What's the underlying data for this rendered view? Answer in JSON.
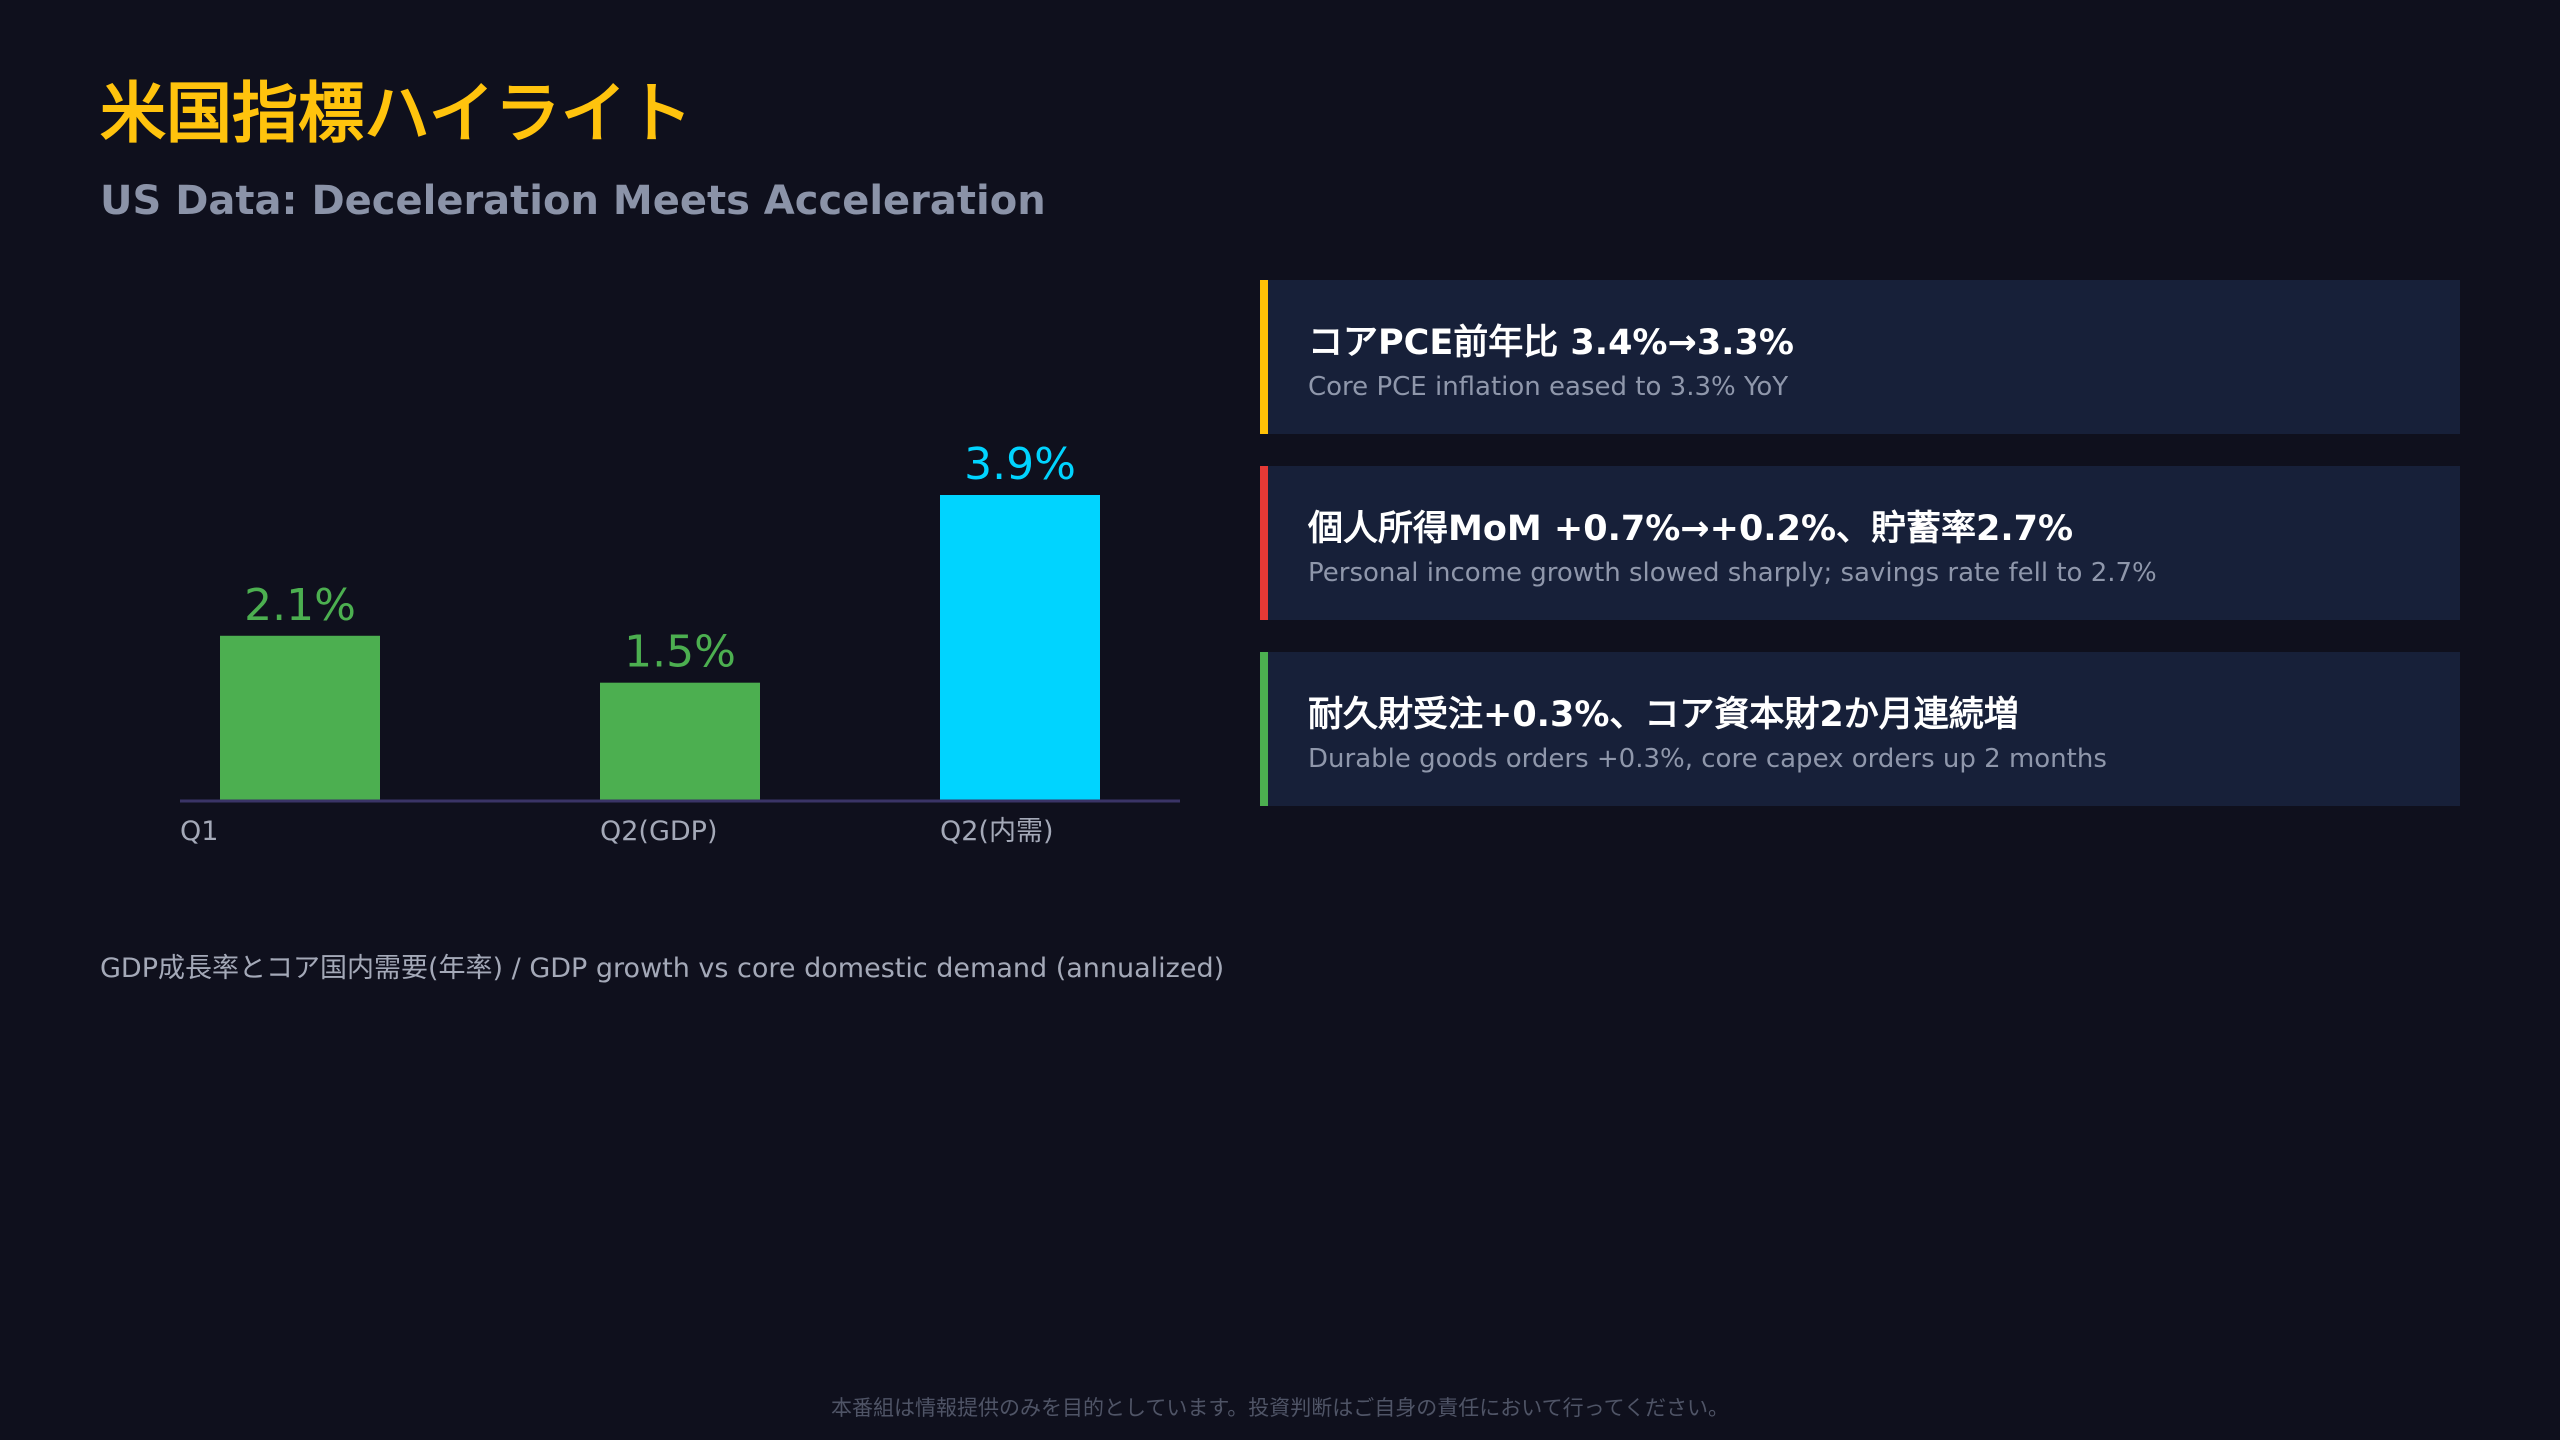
{
  "header": {
    "title": "米国指標ハイライト",
    "subtitle": "US Data: Deceleration Meets Acceleration"
  },
  "chart_data": {
    "type": "bar",
    "categories": [
      "Q1",
      "Q2(GDP)",
      "Q2(内需)"
    ],
    "values": [
      2.1,
      1.5,
      3.9
    ],
    "value_labels": [
      "2.1%",
      "1.5%",
      "3.9%"
    ],
    "colors": [
      "#4caf50",
      "#4caf50",
      "#00d4ff"
    ],
    "ylim": [
      0,
      4
    ],
    "title": "",
    "xlabel": "",
    "ylabel": "",
    "caption": "GDP成長率とコア国内需要(年率) / GDP growth vs core domestic demand (annualized)"
  },
  "cards": [
    {
      "accent": "#ffc107",
      "title": "コアPCE前年比 3.4%→3.3%",
      "desc": "Core PCE inflation eased to 3.3% YoY"
    },
    {
      "accent": "#e53935",
      "title": "個人所得MoM +0.7%→+0.2%、貯蓄率2.7%",
      "desc": "Personal income growth slowed sharply; savings rate fell to 2.7%"
    },
    {
      "accent": "#4caf50",
      "title": "耐久財受注+0.3%、コア資本財2か月連続増",
      "desc": "Durable goods orders +0.3%, core capex orders up 2 months"
    }
  ],
  "footer": {
    "disclaimer": "本番組は情報提供のみを目的としています。投資判断はご自身の責任において行ってください。"
  }
}
